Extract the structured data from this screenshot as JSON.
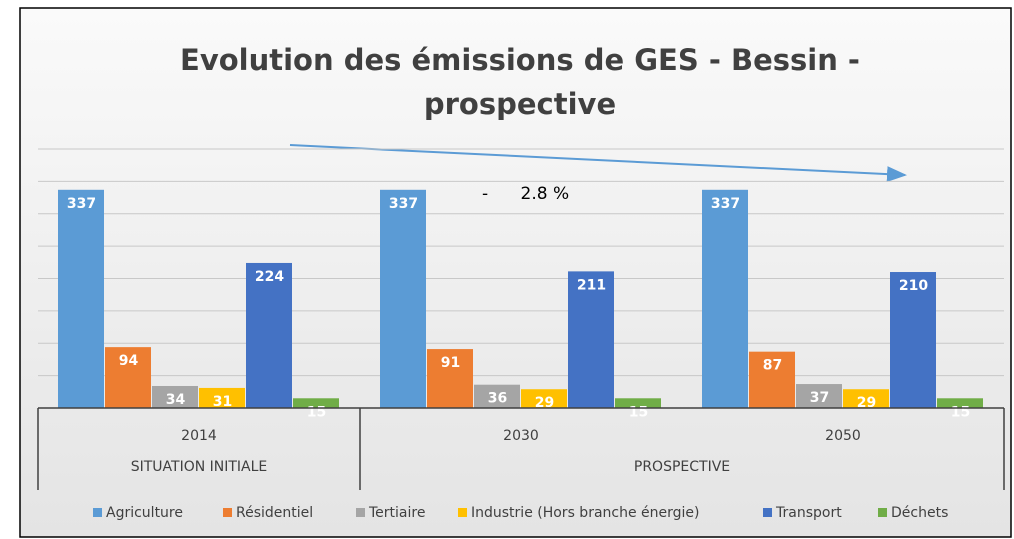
{
  "chart_data": {
    "type": "bar",
    "title": "Evolution des émissions de GES - Bessin - prospective",
    "annotation": "-      2.8 %",
    "categories": [
      "2014",
      "2030",
      "2050"
    ],
    "category_groups": [
      {
        "label": "SITUATION INITIALE",
        "count": 1
      },
      {
        "label": "PROSPECTIVE",
        "count": 2
      }
    ],
    "series": [
      {
        "name": "Agriculture",
        "color": "#5b9bd5",
        "values": [
          337,
          337,
          337
        ]
      },
      {
        "name": "Résidentiel",
        "color": "#ed7d31",
        "values": [
          94,
          91,
          87
        ]
      },
      {
        "name": "Tertiaire",
        "color": "#a5a5a5",
        "values": [
          34,
          36,
          37
        ]
      },
      {
        "name": "Industrie (Hors branche énergie)",
        "color": "#ffc000",
        "values": [
          31,
          29,
          29
        ]
      },
      {
        "name": "Transport",
        "color": "#4472c4",
        "values": [
          224,
          211,
          210
        ]
      },
      {
        "name": "Déchets",
        "color": "#70ad47",
        "values": [
          15,
          15,
          15
        ]
      }
    ],
    "ylim": [
      0,
      400
    ],
    "yticks": [
      0,
      50,
      100,
      150,
      200,
      250,
      300,
      350,
      400
    ],
    "grid": true,
    "legend": "bottom"
  }
}
